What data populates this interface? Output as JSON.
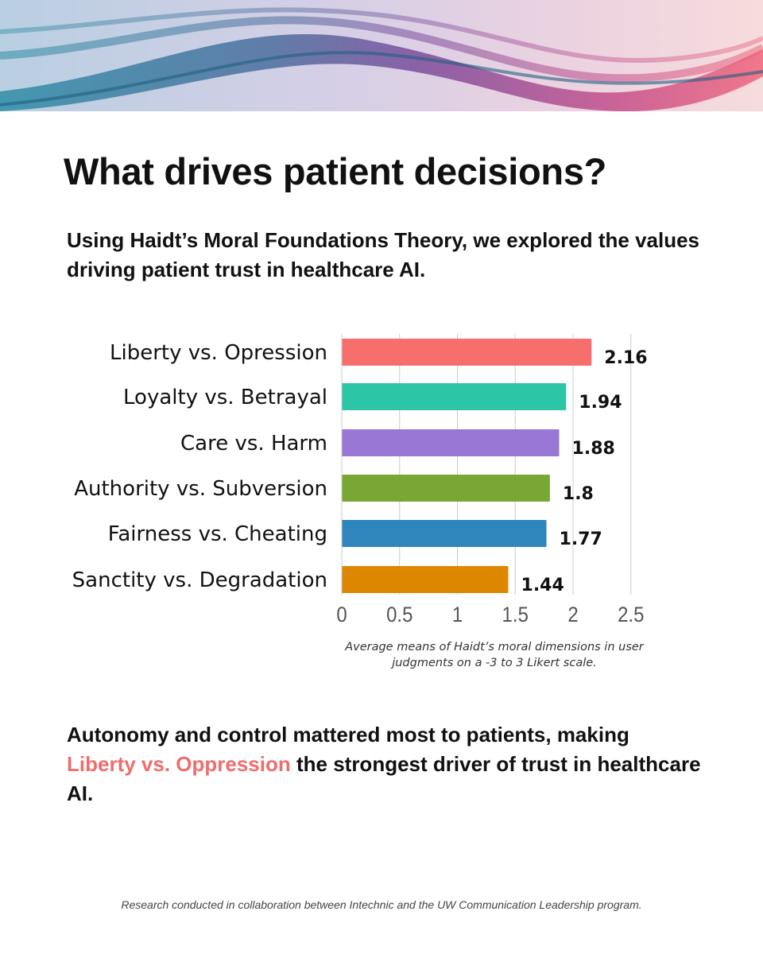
{
  "header": {
    "title": "What drives patient decisions?",
    "subtitle": "Using Haidt’s Moral Foundations Theory, we explored the values driving patient trust in healthcare AI."
  },
  "chart_data": {
    "type": "bar",
    "orientation": "horizontal",
    "categories": [
      "Liberty vs. Opression",
      "Loyalty vs. Betrayal",
      "Care vs. Harm",
      "Authority vs. Subversion",
      "Fairness vs. Cheating",
      "Sanctity vs. Degradation"
    ],
    "values": [
      2.16,
      1.94,
      1.88,
      1.8,
      1.77,
      1.44
    ],
    "value_labels": [
      "2.16",
      "1.94",
      "1.88",
      "1.8",
      "1.77",
      "1.44"
    ],
    "colors": [
      "#f76f6c",
      "#2cc5a5",
      "#9878d4",
      "#78a833",
      "#2f86bd",
      "#dd8700"
    ],
    "xlim": [
      0,
      2.5
    ],
    "xticks": [
      0,
      0.5,
      1,
      1.5,
      2,
      2.5
    ],
    "xtick_labels": [
      "0",
      "0.5",
      "1",
      "1.5",
      "2",
      "2.5"
    ],
    "grid": true,
    "caption_line1": "Average means of Haidt’s moral dimensions in user",
    "caption_line2": "judgments on a -3 to 3 Likert scale."
  },
  "conclusion": {
    "line_start": "Autonomy and control mattered most to patients, making ",
    "highlight": "Liberty vs. Oppression",
    "line_end": " the strongest driver of trust in healthcare AI."
  },
  "footer": {
    "text": "Research conducted in collaboration between Intechnic and the UW Communication Leadership program."
  }
}
